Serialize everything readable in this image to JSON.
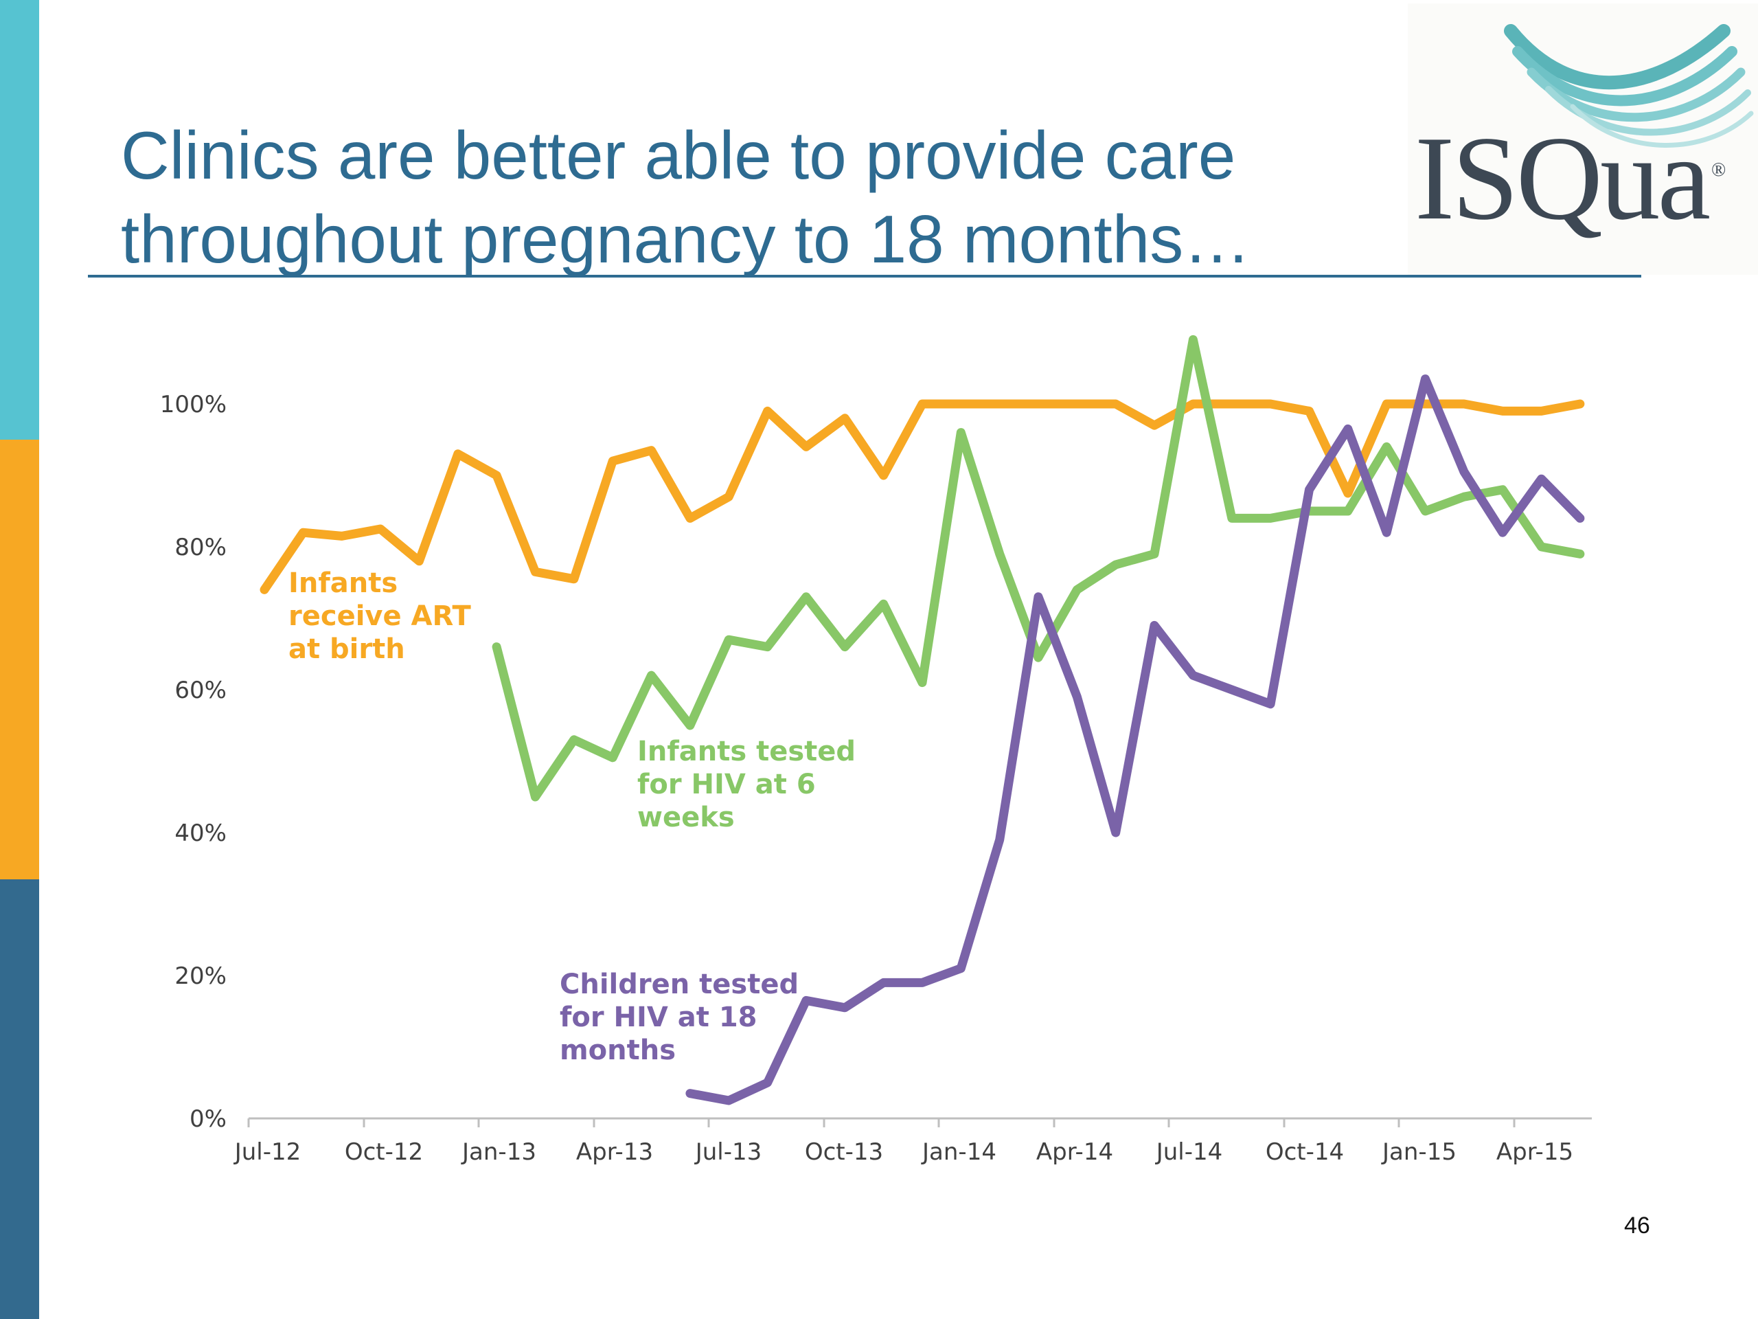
{
  "slide": {
    "title_line1": "Clinics are better able to provide care",
    "title_line2": "throughout pregnancy to 18 months…",
    "page_number": "46"
  },
  "logo": {
    "text": "ISQua",
    "registered": "®"
  },
  "colors": {
    "teal": "#56c3d1",
    "orange": "#f7a823",
    "navy": "#336a8e",
    "title": "#2e6b91",
    "art": "#f7a823",
    "hiv6": "#88c767",
    "hiv18": "#7a63a8"
  },
  "chart_data": {
    "type": "line",
    "title": "",
    "xlabel": "",
    "ylabel": "",
    "ylim": [
      0,
      100
    ],
    "yticks": [
      0,
      20,
      40,
      60,
      80,
      100
    ],
    "ytick_labels": [
      "0%",
      "20%",
      "40%",
      "60%",
      "80%",
      "100%"
    ],
    "x": [
      "Jul-12",
      "Aug-12",
      "Sep-12",
      "Oct-12",
      "Nov-12",
      "Dec-12",
      "Jan-13",
      "Feb-13",
      "Mar-13",
      "Apr-13",
      "May-13",
      "Jun-13",
      "Jul-13",
      "Aug-13",
      "Sep-13",
      "Oct-13",
      "Nov-13",
      "Dec-13",
      "Jan-14",
      "Feb-14",
      "Mar-14",
      "Apr-14",
      "May-14",
      "Jun-14",
      "Jul-14",
      "Aug-14",
      "Sep-14",
      "Oct-14",
      "Nov-14",
      "Dec-14",
      "Jan-15",
      "Feb-15",
      "Mar-15",
      "Apr-15",
      "May-15"
    ],
    "xtick_labels": [
      "Jul-12",
      "Oct-12",
      "Jan-13",
      "Apr-13",
      "Jul-13",
      "Oct-13",
      "Jan-14",
      "Apr-14",
      "Jul-14",
      "Oct-14",
      "Jan-15",
      "Apr-15"
    ],
    "series": [
      {
        "name": "Infants receive ART at birth",
        "label_lines": [
          "Infants",
          "receive ART",
          "at birth"
        ],
        "color": "#f7a823",
        "values": [
          74,
          82,
          81.5,
          82.5,
          78,
          93,
          90,
          76.5,
          75.5,
          92,
          93.5,
          84,
          87,
          99,
          94,
          98,
          90,
          100,
          100,
          100,
          100,
          100,
          100,
          97,
          100,
          100,
          100,
          99,
          87.5,
          100,
          100,
          100,
          99,
          99,
          100
        ]
      },
      {
        "name": "Infants tested for HIV at 6 weeks",
        "label_lines": [
          "Infants tested",
          "for HIV at 6",
          "weeks"
        ],
        "color": "#88c767",
        "values": [
          null,
          null,
          null,
          null,
          null,
          null,
          66,
          45,
          53,
          50.5,
          62,
          55,
          67,
          66,
          73,
          66,
          72,
          61,
          96,
          79,
          64.5,
          74,
          77.5,
          79,
          109,
          84,
          84,
          85,
          85,
          94,
          85,
          87,
          88,
          80,
          79
        ]
      },
      {
        "name": "Children tested for HIV at 18 months",
        "label_lines": [
          "Children tested",
          "for HIV at 18",
          "months"
        ],
        "color": "#7a63a8",
        "values": [
          null,
          null,
          null,
          null,
          null,
          null,
          null,
          null,
          null,
          null,
          null,
          3.5,
          2.5,
          5,
          16.5,
          15.5,
          19,
          19,
          21,
          39,
          73,
          59,
          40,
          69,
          62,
          60,
          58,
          88,
          96.5,
          82,
          103.5,
          90.5,
          82,
          89.5,
          84
        ]
      }
    ],
    "grid": false,
    "legend": "none"
  }
}
